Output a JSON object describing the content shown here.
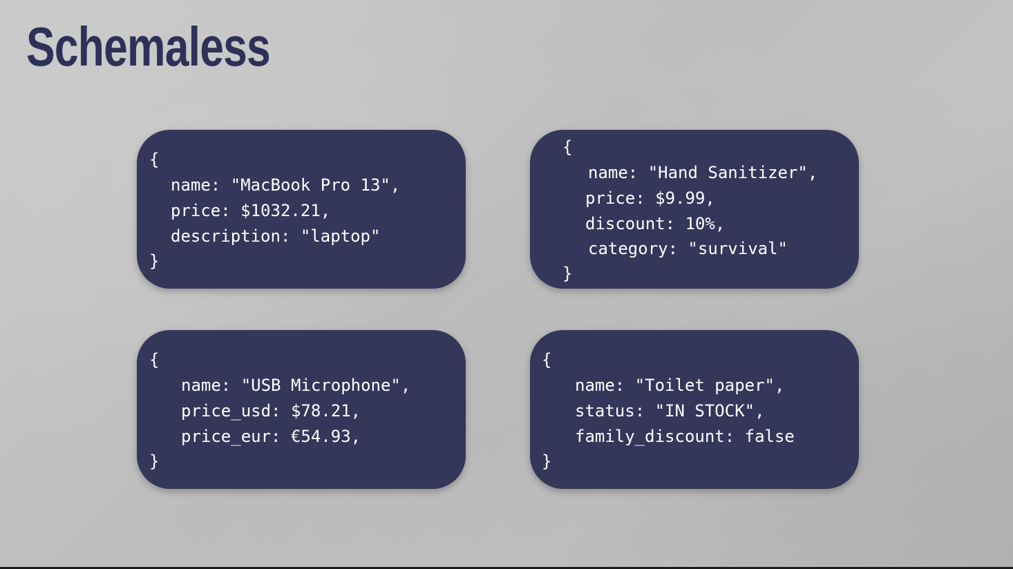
{
  "title": "Schemaless",
  "cards": [
    {
      "open": "{",
      "lines": [
        "name: \"MacBook Pro 13\",",
        "price: $1032.21,",
        "description: \"laptop\""
      ],
      "close": "}"
    },
    {
      "open": "{",
      "lines": [
        "name: \"Hand Sanitizer\",",
        "price: $9.99,",
        "discount: 10%,",
        "category: \"survival\""
      ],
      "close": "}"
    },
    {
      "open": "{",
      "lines": [
        "name: \"USB Microphone\",",
        "price_usd: $78.21,",
        "price_eur: €54.93,"
      ],
      "close": "}"
    },
    {
      "open": "{",
      "lines": [
        "name: \"Toilet paper\",",
        "status: \"IN STOCK\",",
        "family_discount: false"
      ],
      "close": "}"
    }
  ],
  "colors": {
    "card_background": "#34365a",
    "title": "#2e3057",
    "text": "#ffffff"
  }
}
